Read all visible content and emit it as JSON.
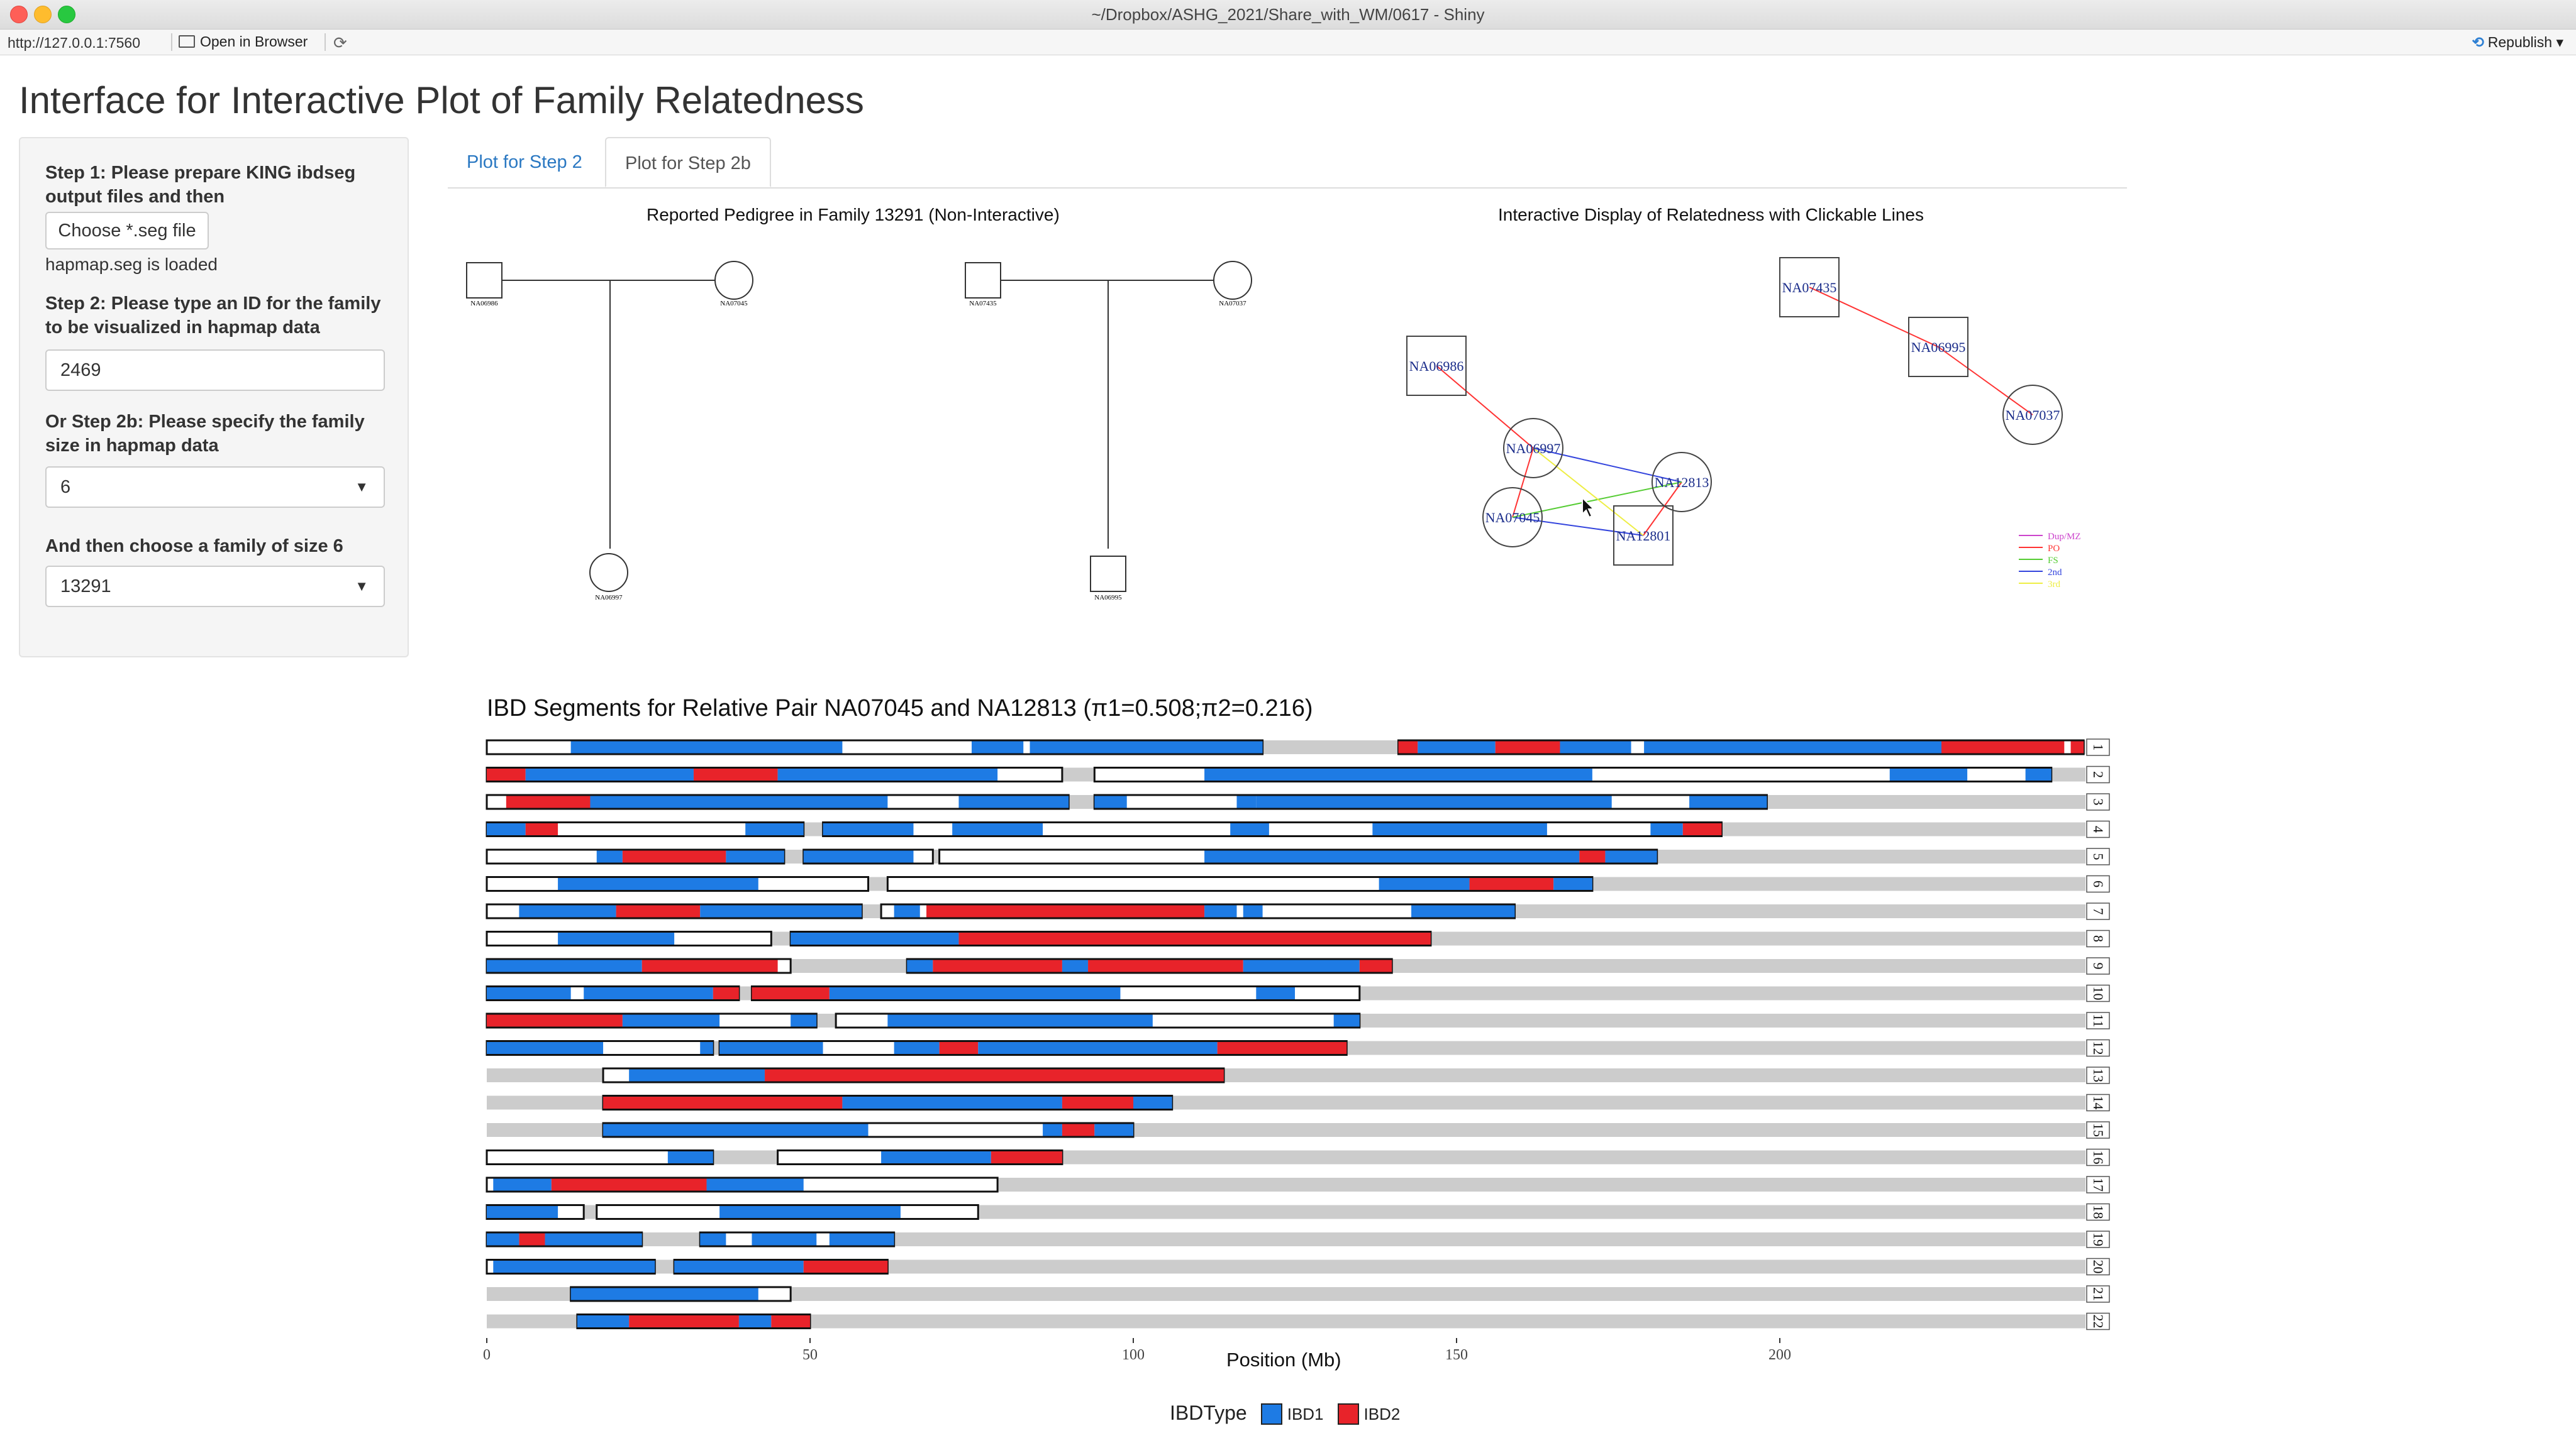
{
  "window": {
    "title": "~/Dropbox/ASHG_2021/Share_with_WM/0617 - Shiny",
    "url": "http://127.0.0.1:7560",
    "open_in_browser": "Open in Browser",
    "republish": "Republish"
  },
  "app": {
    "title": "Interface for Interactive Plot of Family Relatedness",
    "step1_label": "Step 1: Please prepare KING ibdseg output files and then",
    "file_button": "Choose *.seg file",
    "file_status": "hapmap.seg is loaded",
    "step2_label": "Step 2: Please type an ID for the family to be visualized in hapmap data",
    "family_id_value": "2469",
    "step2b_label": "Or Step 2b: Please specify the family size in hapmap data",
    "family_size_value": "6",
    "choose_label": "And then choose a family of size 6",
    "family_choice_value": "13291"
  },
  "tabs": [
    {
      "label": "Plot for Step 2",
      "active": false
    },
    {
      "label": "Plot for Step 2b",
      "active": true
    }
  ],
  "pedigree": {
    "title": "Reported Pedigree in Family 13291 (Non-Interactive)",
    "families": [
      {
        "father": "NA06986",
        "mother": "NA07045",
        "child": "NA06997"
      },
      {
        "father": "NA07435",
        "mother": "NA07037",
        "child": "NA06995"
      }
    ]
  },
  "network": {
    "title": "Interactive Display of Relatedness with Clickable Lines",
    "nodes": [
      {
        "id": "NA07435",
        "shape": "square"
      },
      {
        "id": "NA06995",
        "shape": "square"
      },
      {
        "id": "NA07037",
        "shape": "circle"
      },
      {
        "id": "NA06986",
        "shape": "square"
      },
      {
        "id": "NA06997",
        "shape": "circle"
      },
      {
        "id": "NA12813",
        "shape": "circle"
      },
      {
        "id": "NA07045",
        "shape": "circle"
      },
      {
        "id": "NA12801",
        "shape": "square"
      }
    ],
    "edges": [
      {
        "from": "NA07435",
        "to": "NA06995",
        "type": "PO"
      },
      {
        "from": "NA06995",
        "to": "NA07037",
        "type": "PO"
      },
      {
        "from": "NA06986",
        "to": "NA06997",
        "type": "PO"
      },
      {
        "from": "NA06997",
        "to": "NA07045",
        "type": "PO"
      },
      {
        "from": "NA12813",
        "to": "NA12801",
        "type": "PO"
      },
      {
        "from": "NA06997",
        "to": "NA12813",
        "type": "2nd"
      },
      {
        "from": "NA07045",
        "to": "NA12801",
        "type": "2nd"
      },
      {
        "from": "NA07045",
        "to": "NA12813",
        "type": "FS"
      },
      {
        "from": "NA06997",
        "to": "NA12801",
        "type": "3rd"
      }
    ],
    "legend": [
      {
        "label": "Dup/MZ",
        "color": "#cc44cc"
      },
      {
        "label": "PO",
        "color": "#ff3333"
      },
      {
        "label": "FS",
        "color": "#55cc33"
      },
      {
        "label": "2nd",
        "color": "#3344dd"
      },
      {
        "label": "3rd",
        "color": "#eeee44"
      }
    ]
  },
  "chart_data": {
    "type": "bar",
    "title": "IBD Segments for Relative Pair NA07045 and NA12813 (π1=0.508;π2=0.216)",
    "xlabel": "Position (Mb)",
    "xlim": [
      0,
      250
    ],
    "xticks": [
      0,
      50,
      100,
      150,
      200
    ],
    "legend_title": "IBDType",
    "legend": [
      {
        "label": "IBD1",
        "color": "#1e7be4"
      },
      {
        "label": "IBD2",
        "color": "#e8232a"
      }
    ],
    "background_color": "#cccccc",
    "chromosomes": [
      {
        "chr": "1",
        "len": 249,
        "regions": [
          [
            0,
            120
          ],
          [
            141,
            247
          ]
        ],
        "ibd": [
          [
            13,
            55,
            1
          ],
          [
            75,
            83,
            1
          ],
          [
            84,
            120,
            1
          ],
          [
            141,
            144,
            2
          ],
          [
            144,
            156,
            1
          ],
          [
            156,
            166,
            2
          ],
          [
            166,
            177,
            1
          ],
          [
            179,
            225,
            1
          ],
          [
            225,
            244,
            2
          ],
          [
            245,
            247,
            2
          ]
        ]
      },
      {
        "chr": "2",
        "len": 243,
        "regions": [
          [
            0,
            89
          ],
          [
            94,
            242
          ]
        ],
        "ibd": [
          [
            0,
            6,
            2
          ],
          [
            6,
            32,
            1
          ],
          [
            32,
            45,
            2
          ],
          [
            45,
            79,
            1
          ],
          [
            111,
            171,
            1
          ],
          [
            217,
            229,
            1
          ],
          [
            238,
            242,
            1
          ]
        ]
      },
      {
        "chr": "3",
        "len": 198,
        "regions": [
          [
            0,
            90
          ],
          [
            94,
            198
          ]
        ],
        "ibd": [
          [
            3,
            16,
            2
          ],
          [
            16,
            62,
            1
          ],
          [
            73,
            90,
            1
          ],
          [
            94,
            99,
            1
          ],
          [
            116,
            119,
            1
          ],
          [
            119,
            174,
            1
          ],
          [
            186,
            198,
            1
          ]
        ]
      },
      {
        "chr": "4",
        "len": 191,
        "regions": [
          [
            0,
            49
          ],
          [
            52,
            191
          ]
        ],
        "ibd": [
          [
            0,
            6,
            1
          ],
          [
            6,
            11,
            2
          ],
          [
            40,
            49,
            1
          ],
          [
            52,
            66,
            1
          ],
          [
            72,
            86,
            1
          ],
          [
            115,
            121,
            1
          ],
          [
            137,
            164,
            1
          ],
          [
            180,
            185,
            1
          ],
          [
            185,
            191,
            2
          ]
        ]
      },
      {
        "chr": "5",
        "len": 181,
        "regions": [
          [
            0,
            46
          ],
          [
            49,
            69
          ],
          [
            70,
            181
          ]
        ],
        "ibd": [
          [
            17,
            21,
            1
          ],
          [
            21,
            37,
            2
          ],
          [
            37,
            46,
            1
          ],
          [
            49,
            66,
            1
          ],
          [
            111,
            169,
            1
          ],
          [
            169,
            173,
            2
          ],
          [
            173,
            181,
            1
          ]
        ]
      },
      {
        "chr": "6",
        "len": 171,
        "regions": [
          [
            0,
            59
          ],
          [
            62,
            171
          ]
        ],
        "ibd": [
          [
            11,
            42,
            1
          ],
          [
            138,
            152,
            1
          ],
          [
            152,
            165,
            2
          ],
          [
            165,
            171,
            1
          ]
        ]
      },
      {
        "chr": "7",
        "len": 159,
        "regions": [
          [
            0,
            58
          ],
          [
            61,
            159
          ]
        ],
        "ibd": [
          [
            5,
            20,
            1
          ],
          [
            20,
            33,
            2
          ],
          [
            33,
            58,
            1
          ],
          [
            63,
            67,
            1
          ],
          [
            68,
            111,
            2
          ],
          [
            111,
            116,
            1
          ],
          [
            117,
            120,
            1
          ],
          [
            143,
            159,
            1
          ]
        ]
      },
      {
        "chr": "8",
        "len": 146,
        "regions": [
          [
            0,
            44
          ],
          [
            47,
            146
          ]
        ],
        "ibd": [
          [
            11,
            29,
            1
          ],
          [
            47,
            73,
            1
          ],
          [
            73,
            146,
            2
          ]
        ]
      },
      {
        "chr": "9",
        "len": 141,
        "regions": [
          [
            0,
            47
          ],
          [
            65,
            140
          ]
        ],
        "ibd": [
          [
            0,
            24,
            1
          ],
          [
            24,
            45,
            2
          ],
          [
            65,
            69,
            1
          ],
          [
            69,
            89,
            2
          ],
          [
            89,
            93,
            1
          ],
          [
            93,
            117,
            2
          ],
          [
            117,
            135,
            1
          ],
          [
            135,
            140,
            2
          ]
        ]
      },
      {
        "chr": "10",
        "len": 135,
        "regions": [
          [
            0,
            39
          ],
          [
            41,
            135
          ]
        ],
        "ibd": [
          [
            0,
            13,
            1
          ],
          [
            15,
            35,
            1
          ],
          [
            35,
            39,
            2
          ],
          [
            41,
            53,
            2
          ],
          [
            53,
            98,
            1
          ],
          [
            119,
            125,
            1
          ]
        ]
      },
      {
        "chr": "11",
        "len": 135,
        "regions": [
          [
            0,
            51
          ],
          [
            54,
            135
          ]
        ],
        "ibd": [
          [
            0,
            21,
            2
          ],
          [
            21,
            36,
            1
          ],
          [
            47,
            51,
            1
          ],
          [
            62,
            103,
            1
          ],
          [
            131,
            135,
            1
          ]
        ]
      },
      {
        "chr": "12",
        "len": 133,
        "regions": [
          [
            0,
            35
          ],
          [
            36,
            133
          ]
        ],
        "ibd": [
          [
            0,
            18,
            1
          ],
          [
            33,
            35,
            1
          ],
          [
            36,
            52,
            1
          ],
          [
            63,
            70,
            1
          ],
          [
            70,
            76,
            2
          ],
          [
            76,
            113,
            1
          ],
          [
            113,
            133,
            2
          ]
        ]
      },
      {
        "chr": "13",
        "len": 114,
        "regions": [
          [
            18,
            114
          ]
        ],
        "ibd": [
          [
            22,
            43,
            1
          ],
          [
            43,
            114,
            2
          ]
        ]
      },
      {
        "chr": "14",
        "len": 106,
        "regions": [
          [
            18,
            106
          ]
        ],
        "ibd": [
          [
            18,
            55,
            2
          ],
          [
            55,
            89,
            1
          ],
          [
            89,
            100,
            2
          ],
          [
            100,
            106,
            1
          ]
        ]
      },
      {
        "chr": "15",
        "len": 100,
        "regions": [
          [
            18,
            100
          ]
        ],
        "ibd": [
          [
            18,
            59,
            1
          ],
          [
            86,
            89,
            1
          ],
          [
            89,
            94,
            2
          ],
          [
            94,
            100,
            1
          ]
        ]
      },
      {
        "chr": "16",
        "len": 89,
        "regions": [
          [
            0,
            35
          ],
          [
            45,
            89
          ]
        ],
        "ibd": [
          [
            28,
            35,
            1
          ],
          [
            61,
            78,
            1
          ],
          [
            78,
            89,
            2
          ]
        ]
      },
      {
        "chr": "17",
        "len": 79,
        "regions": [
          [
            0,
            79
          ]
        ],
        "ibd": [
          [
            1,
            10,
            1
          ],
          [
            10,
            34,
            2
          ],
          [
            34,
            49,
            1
          ]
        ]
      },
      {
        "chr": "18",
        "len": 76,
        "regions": [
          [
            0,
            15
          ],
          [
            17,
            76
          ]
        ],
        "ibd": [
          [
            0,
            11,
            1
          ],
          [
            36,
            64,
            1
          ]
        ]
      },
      {
        "chr": "19",
        "len": 63,
        "regions": [
          [
            0,
            24
          ],
          [
            33,
            63
          ]
        ],
        "ibd": [
          [
            0,
            5,
            1
          ],
          [
            5,
            9,
            2
          ],
          [
            9,
            24,
            1
          ],
          [
            33,
            37,
            1
          ],
          [
            41,
            51,
            1
          ],
          [
            53,
            63,
            1
          ]
        ]
      },
      {
        "chr": "20",
        "len": 62,
        "regions": [
          [
            0,
            26
          ],
          [
            29,
            62
          ]
        ],
        "ibd": [
          [
            1,
            26,
            1
          ],
          [
            29,
            49,
            1
          ],
          [
            49,
            62,
            2
          ]
        ]
      },
      {
        "chr": "21",
        "len": 47,
        "regions": [
          [
            13,
            47
          ]
        ],
        "ibd": [
          [
            13,
            42,
            1
          ]
        ]
      },
      {
        "chr": "22",
        "len": 50,
        "regions": [
          [
            14,
            50
          ]
        ],
        "ibd": [
          [
            14,
            22,
            1
          ],
          [
            22,
            39,
            2
          ],
          [
            39,
            44,
            1
          ],
          [
            44,
            50,
            2
          ]
        ]
      }
    ]
  }
}
